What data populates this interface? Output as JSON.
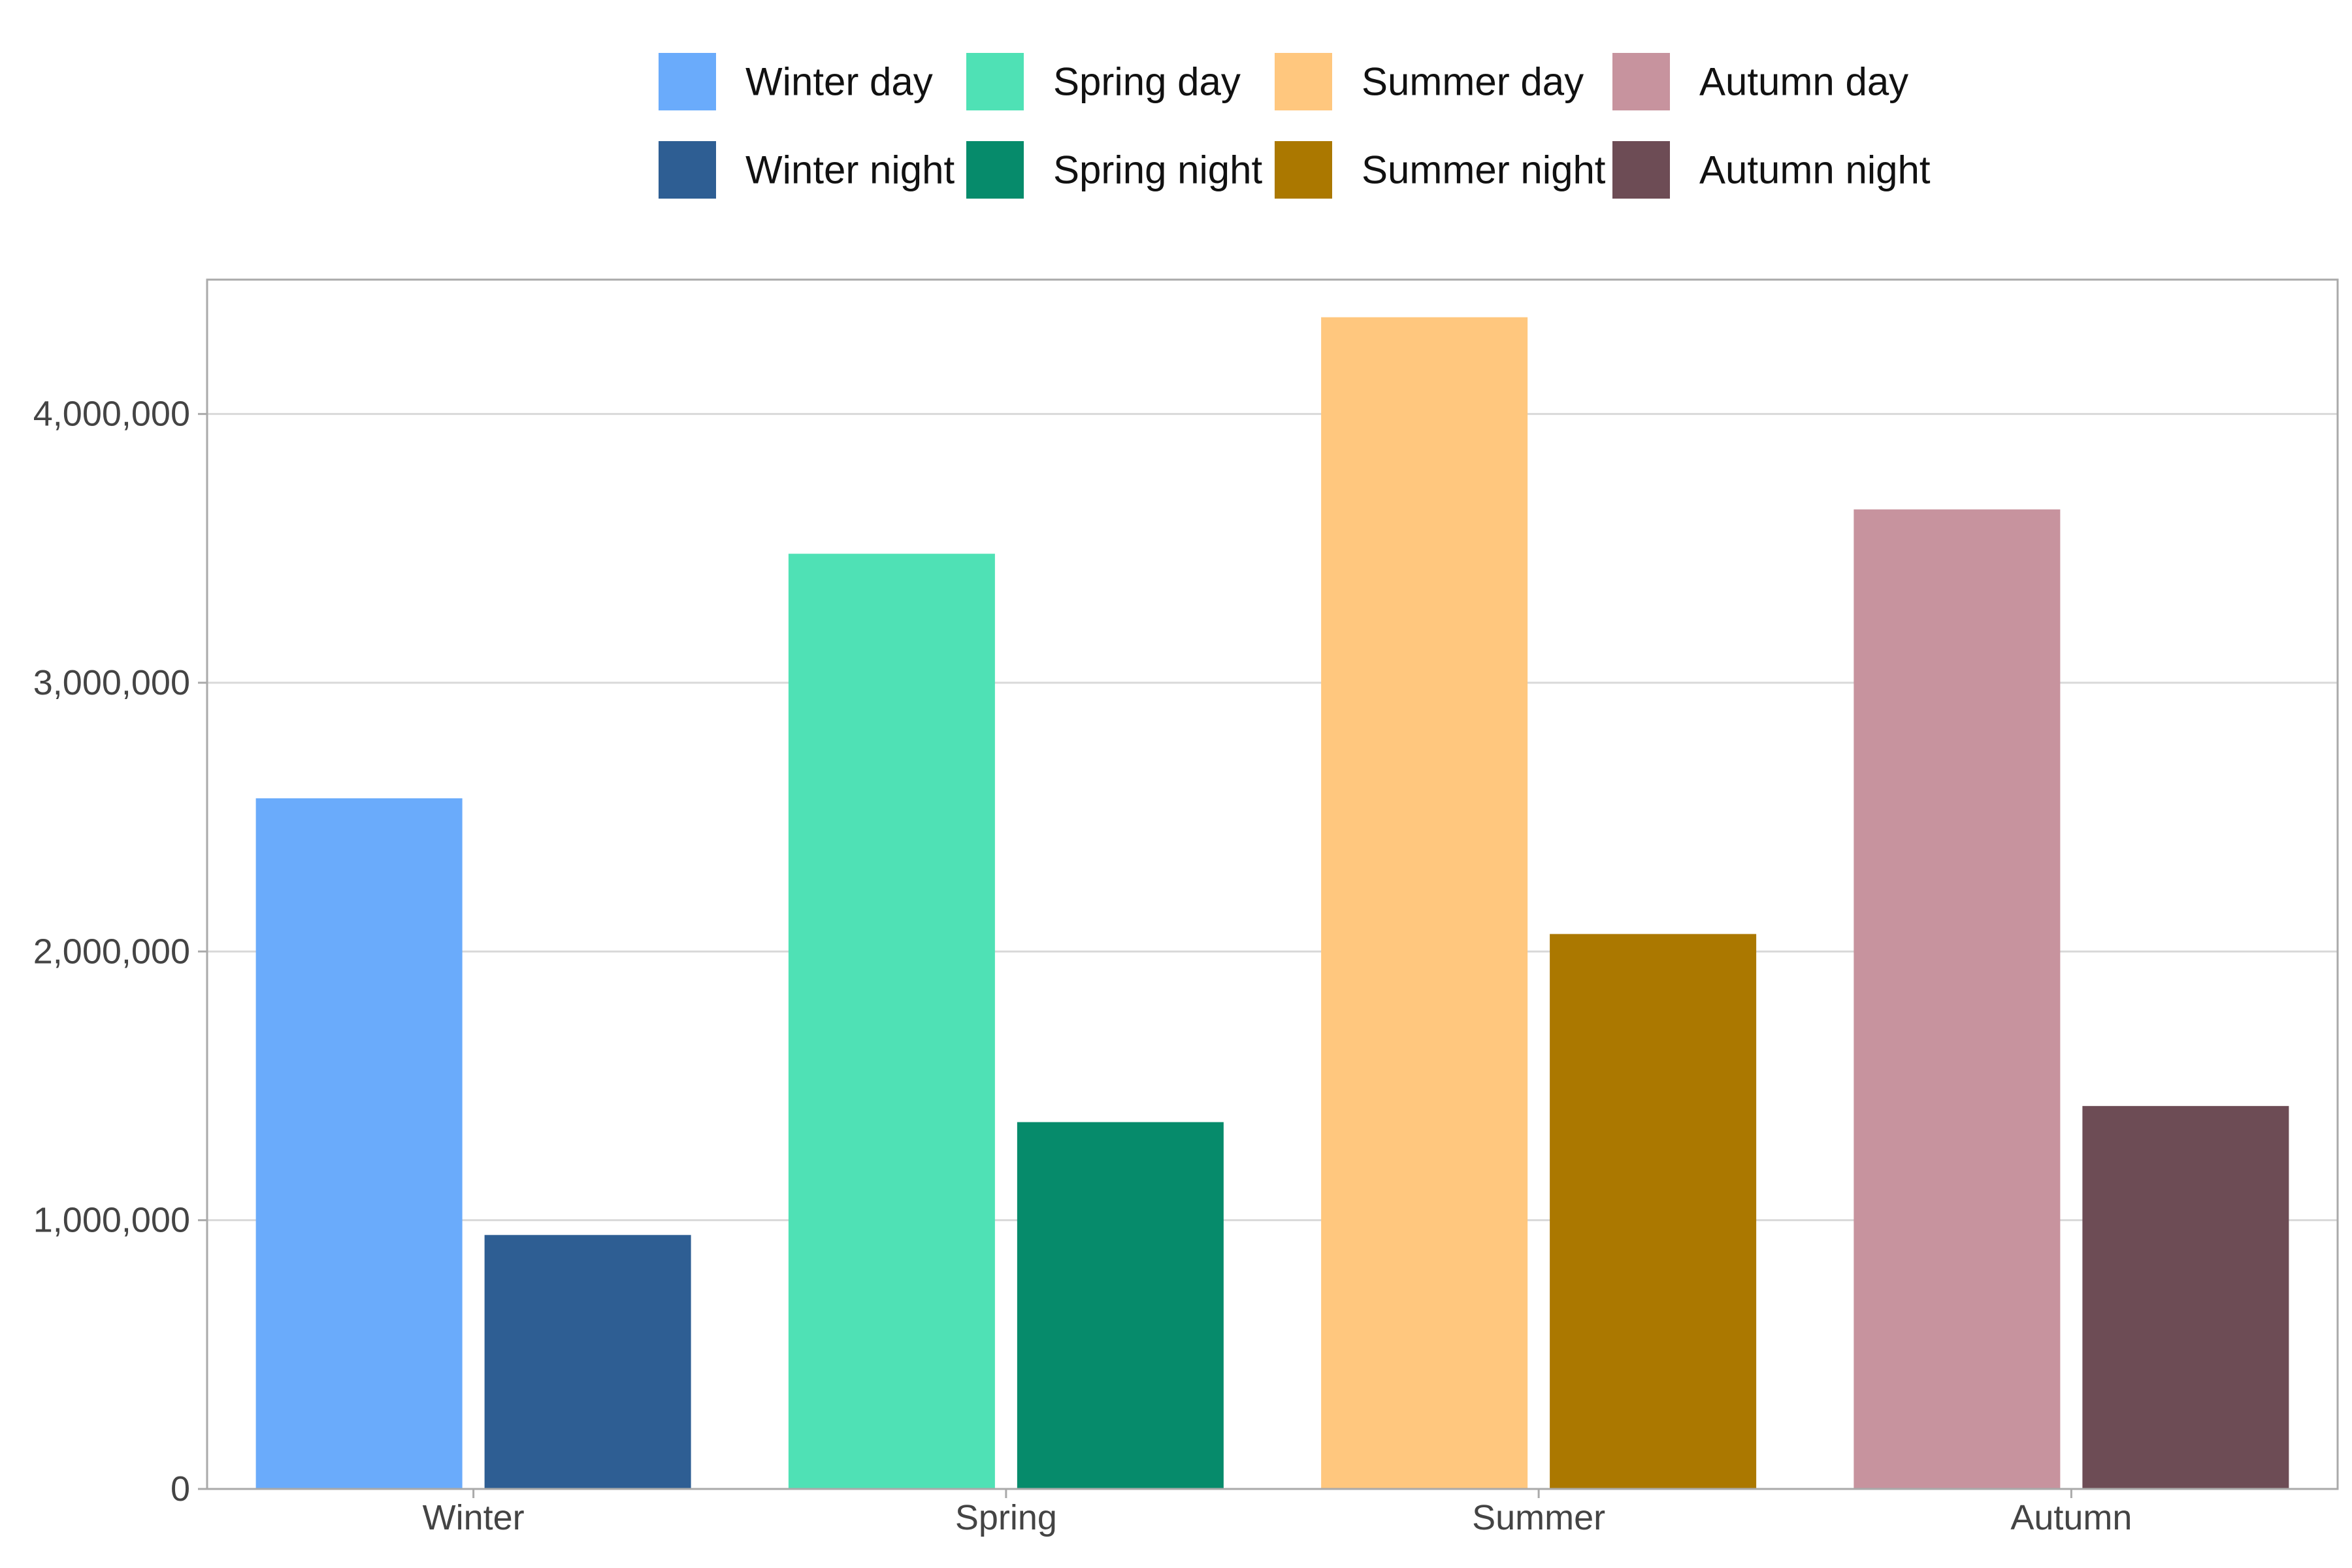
{
  "chart_data": {
    "type": "bar",
    "categories": [
      "Winter",
      "Spring",
      "Summer",
      "Autumn"
    ],
    "series": [
      {
        "name": "Winter day",
        "category": "Winter",
        "value": 2570000,
        "color": "#6aabfb"
      },
      {
        "name": "Winter night",
        "category": "Winter",
        "value": 945000,
        "color": "#2e5e93"
      },
      {
        "name": "Spring day",
        "category": "Spring",
        "value": 3480000,
        "color": "#4fe1b5"
      },
      {
        "name": "Spring night",
        "category": "Spring",
        "value": 1365000,
        "color": "#068b6b"
      },
      {
        "name": "Summer day",
        "category": "Summer",
        "value": 4360000,
        "color": "#ffc77e"
      },
      {
        "name": "Summer night",
        "category": "Summer",
        "value": 2065000,
        "color": "#ab7800"
      },
      {
        "name": "Autumn day",
        "category": "Autumn",
        "value": 3645000,
        "color": "#c7939e"
      },
      {
        "name": "Autumn night",
        "category": "Autumn",
        "value": 1425000,
        "color": "#6d4c55"
      }
    ],
    "y_ticks": [
      {
        "value": 0,
        "label": "0"
      },
      {
        "value": 1000000,
        "label": "1,000,000"
      },
      {
        "value": 2000000,
        "label": "2,000,000"
      },
      {
        "value": 3000000,
        "label": "3,000,000"
      },
      {
        "value": 4000000,
        "label": "4,000,000"
      }
    ],
    "ylim": [
      0,
      4500000
    ],
    "grid": true,
    "legend_position": "top"
  }
}
